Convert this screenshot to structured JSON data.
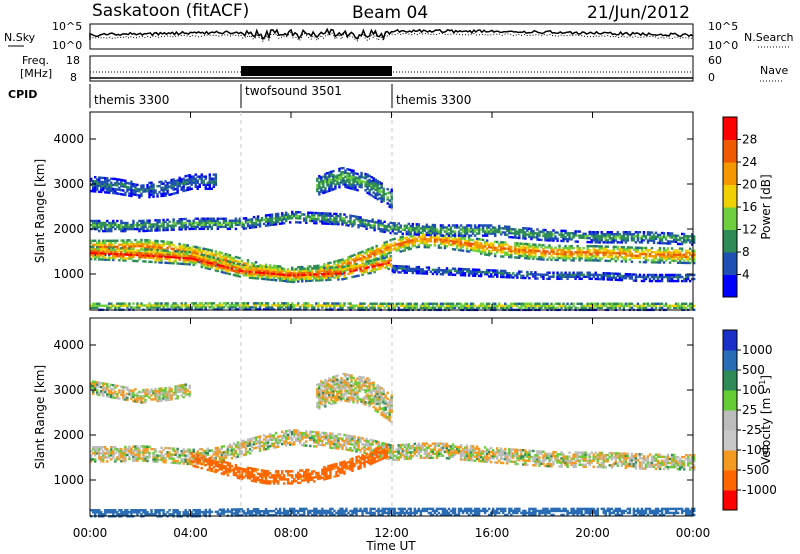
{
  "header": {
    "station": "Saskatoon (fitACF)",
    "beam": "Beam 04",
    "date": "21/Jun/2012"
  },
  "top_panels": {
    "nsky_label": "N.Sky",
    "nsky_ticks": [
      "10^5",
      "10^0"
    ],
    "nsearch_label": "N.Search",
    "nsearch_ticks": [
      "10^5",
      "10^0"
    ],
    "freq_label_1": "Freq.",
    "freq_label_2": "[MHz]",
    "freq_ticks": [
      "18",
      "8"
    ],
    "nave_label": "Nave",
    "nave_ticks": [
      "60",
      "0"
    ],
    "cpid_label": "CPID",
    "cpid_segments": [
      {
        "name": "themis 3300",
        "start": 0,
        "end": 6
      },
      {
        "name": "twofsound 3501",
        "start": 6,
        "end": 12
      },
      {
        "name": "themis 3300",
        "start": 12,
        "end": 24
      }
    ]
  },
  "time_axis": {
    "label": "Time UT",
    "ticks": [
      "00:00",
      "04:00",
      "08:00",
      "12:00",
      "16:00",
      "20:00",
      "00:00"
    ]
  },
  "range_axis": {
    "label": "Slant Range [km]",
    "ticks": [
      "4000",
      "3000",
      "2000",
      "1000"
    ]
  },
  "power_colorbar": {
    "label": "Power [dB]",
    "ticks": [
      "28",
      "24",
      "20",
      "16",
      "12",
      "8",
      "4"
    ],
    "colors": [
      "#0000ff",
      "#1f4fb3",
      "#2e8b57",
      "#6fcf3f",
      "#f0d000",
      "#f39800",
      "#ef5a00",
      "#ff0000"
    ]
  },
  "velocity_colorbar": {
    "label": "Velocity [m s",
    "label_sup": "-1",
    "label_end": "]",
    "ticks": [
      "1000",
      "500",
      "100",
      "25",
      "-25",
      "-100",
      "-500",
      "-1000"
    ],
    "colors": [
      "#1a2ec8",
      "#2a6db5",
      "#2e8b57",
      "#66cc33",
      "#bcbcbc",
      "#c8c8c8",
      "#f59a20",
      "#ff6600",
      "#ff0000"
    ]
  },
  "chart_data": [
    {
      "type": "heatmap",
      "name": "power",
      "xlabel": "Time UT",
      "ylabel": "Slant Range [km]",
      "xlim": [
        0,
        24
      ],
      "ylim": [
        200,
        4600
      ],
      "colorbar_label": "Power [dB]",
      "clim": [
        0,
        32
      ],
      "bands": [
        {
          "x": [
            0,
            1,
            2,
            3,
            4,
            5,
            6,
            7,
            8,
            9,
            10,
            11,
            12,
            13,
            14,
            15,
            16,
            17,
            18,
            19,
            20,
            21,
            22,
            23,
            24
          ],
          "center": [
            1620,
            1620,
            1640,
            1600,
            1500,
            1380,
            1220,
            1080,
            1020,
            1060,
            1200,
            1420,
            1650,
            1800,
            1780,
            1700,
            1600,
            1560,
            1520,
            1500,
            1500,
            1480,
            1460,
            1450,
            1440
          ],
          "halfwidth": 170,
          "peak": 26
        },
        {
          "x": [
            0,
            2,
            4,
            6,
            8,
            10,
            12
          ],
          "center": [
            1500,
            1450,
            1380,
            1100,
            1000,
            1050,
            1300
          ],
          "halfwidth": 140,
          "peak": 30
        },
        {
          "x": [
            0,
            2,
            4,
            6,
            8,
            10,
            12,
            14,
            16,
            18,
            20,
            22,
            24
          ],
          "center": [
            2100,
            2100,
            2150,
            2150,
            2300,
            2250,
            2050,
            2000,
            2000,
            1900,
            1850,
            1850,
            1800
          ],
          "halfwidth": 120,
          "peak": 12
        },
        {
          "x": [
            0,
            1,
            2,
            3,
            4,
            5
          ],
          "center": [
            3050,
            3000,
            2900,
            2950,
            3100,
            3100
          ],
          "halfwidth": 180,
          "peak": 8
        },
        {
          "x": [
            9,
            10,
            11,
            12
          ],
          "center": [
            3000,
            3200,
            3050,
            2700
          ],
          "halfwidth": 220,
          "peak": 12
        },
        {
          "x": [
            12,
            14,
            16,
            18,
            20,
            22,
            24
          ],
          "center": [
            1150,
            1100,
            1050,
            1000,
            1000,
            950,
            950
          ],
          "halfwidth": 80,
          "peak": 8
        },
        {
          "x": [
            0,
            4,
            8,
            12,
            16,
            20,
            24
          ],
          "center": [
            320,
            330,
            330,
            320,
            320,
            320,
            320
          ],
          "halfwidth": 90,
          "peak": 16
        }
      ]
    },
    {
      "type": "heatmap",
      "name": "velocity",
      "xlabel": "Time UT",
      "ylabel": "Slant Range [km]",
      "xlim": [
        0,
        24
      ],
      "ylim": [
        200,
        4600
      ],
      "colorbar_label": "Velocity [m s-1]",
      "clim": [
        -1000,
        1000
      ],
      "bands": [
        {
          "x": [
            0,
            1,
            2,
            3,
            4,
            5,
            6,
            7,
            8,
            9,
            10,
            11,
            12,
            13,
            14,
            15,
            16,
            17,
            18,
            19,
            20,
            21,
            22,
            23,
            24
          ],
          "center": [
            1620,
            1620,
            1640,
            1600,
            1560,
            1600,
            1750,
            1900,
            2000,
            1950,
            1900,
            1800,
            1650,
            1700,
            1700,
            1650,
            1600,
            1560,
            1520,
            1500,
            1500,
            1480,
            1460,
            1450,
            1440
          ],
          "halfwidth": 180,
          "velocity": 0
        },
        {
          "x": [
            4,
            5,
            6,
            7,
            8,
            9,
            10,
            11,
            11.8
          ],
          "center": [
            1500,
            1350,
            1200,
            1100,
            1100,
            1150,
            1300,
            1500,
            1700
          ],
          "halfwidth": 150,
          "velocity": -150
        },
        {
          "x": [
            0,
            2,
            4,
            6,
            8,
            10,
            12,
            16,
            20,
            24
          ],
          "center": [
            300,
            300,
            300,
            320,
            330,
            330,
            330,
            330,
            330,
            330
          ],
          "halfwidth": 80,
          "velocity": 200
        },
        {
          "x": [
            9,
            10,
            11,
            12
          ],
          "center": [
            2900,
            3100,
            3000,
            2600
          ],
          "halfwidth": 300,
          "velocity": 0
        },
        {
          "x": [
            0,
            1,
            2,
            3,
            4
          ],
          "center": [
            3100,
            3000,
            2900,
            2950,
            3050
          ],
          "halfwidth": 150,
          "velocity": 0
        }
      ]
    }
  ]
}
